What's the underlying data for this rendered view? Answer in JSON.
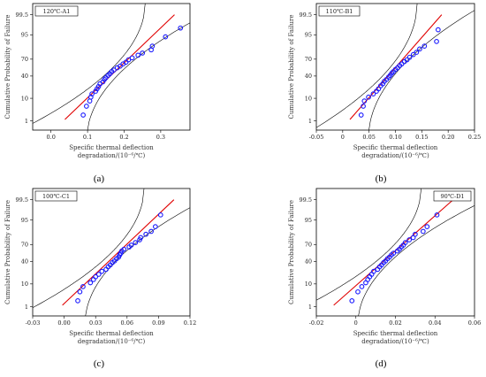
{
  "chart_data": [
    {
      "type": "scatter",
      "panel_label": "120℃-A1",
      "caption": "(a)",
      "xlabel": [
        "Specific thermal deflection",
        "degradation/(10⁻⁶/℃)"
      ],
      "ylabel": "Cumulative Probability of Failure",
      "x_ticks": [
        0.0,
        0.1,
        0.2,
        0.3
      ],
      "xlim": [
        -0.05,
        0.38
      ],
      "y_ticks": [
        1,
        10,
        40,
        70,
        95,
        99.5
      ],
      "y_tick_labels": [
        "1",
        "10",
        "40",
        "70",
        "95",
        "99.5"
      ],
      "fit": {
        "mean": 0.178,
        "sd": 0.062
      },
      "ci": {
        "x_low": [
          -0.02,
          0.34
        ],
        "x_mid": [
          0.14,
          0.23
        ]
      },
      "points": [
        [
          0.088,
          2.0
        ],
        [
          0.097,
          5.0
        ],
        [
          0.106,
          8.0
        ],
        [
          0.109,
          11.0
        ],
        [
          0.112,
          14.0
        ],
        [
          0.122,
          17.0
        ],
        [
          0.126,
          20.0
        ],
        [
          0.13,
          23.0
        ],
        [
          0.134,
          27.0
        ],
        [
          0.142,
          30.0
        ],
        [
          0.146,
          34.0
        ],
        [
          0.15,
          37.0
        ],
        [
          0.156,
          41.0
        ],
        [
          0.161,
          44.0
        ],
        [
          0.166,
          48.0
        ],
        [
          0.172,
          51.0
        ],
        [
          0.181,
          55.0
        ],
        [
          0.189,
          58.0
        ],
        [
          0.197,
          62.0
        ],
        [
          0.205,
          65.0
        ],
        [
          0.212,
          69.0
        ],
        [
          0.222,
          72.0
        ],
        [
          0.238,
          76.0
        ],
        [
          0.25,
          79.0
        ],
        [
          0.274,
          83.0
        ],
        [
          0.277,
          87.0
        ],
        [
          0.313,
          94.0
        ],
        [
          0.354,
          97.5
        ]
      ]
    },
    {
      "type": "scatter",
      "panel_label": "110℃-B1",
      "caption": "(b)",
      "xlabel": [
        "Specific thermal deflection",
        "degradation/(10⁻⁶/℃)"
      ],
      "ylabel": "Cumulative Probability of Failure",
      "x_ticks": [
        -0.05,
        0.0,
        0.05,
        0.1,
        0.15,
        0.2,
        0.25
      ],
      "x_tick_labels": [
        "-0.05",
        "0",
        "0.05",
        "0.10",
        "0.15",
        "0.20",
        "0.25"
      ],
      "xlim": [
        -0.05,
        0.25
      ],
      "y_ticks": [
        1,
        10,
        40,
        70,
        95,
        99.5
      ],
      "y_tick_labels": [
        "1",
        "10",
        "40",
        "70",
        "95",
        "99.5"
      ],
      "fit": {
        "mean": 0.095,
        "sd": 0.036
      },
      "ci": {
        "x_low": [
          -0.01,
          0.2
        ],
        "x_mid": [
          0.08,
          0.11
        ]
      },
      "points": [
        [
          0.035,
          2.0
        ],
        [
          0.039,
          5.0
        ],
        [
          0.041,
          8.0
        ],
        [
          0.049,
          11.0
        ],
        [
          0.058,
          14.0
        ],
        [
          0.064,
          17.0
        ],
        [
          0.068,
          20.0
        ],
        [
          0.072,
          24.0
        ],
        [
          0.076,
          27.0
        ],
        [
          0.079,
          31.0
        ],
        [
          0.083,
          34.0
        ],
        [
          0.087,
          38.0
        ],
        [
          0.09,
          41.0
        ],
        [
          0.093,
          45.0
        ],
        [
          0.096,
          48.0
        ],
        [
          0.1,
          52.0
        ],
        [
          0.104,
          55.0
        ],
        [
          0.108,
          59.0
        ],
        [
          0.112,
          62.0
        ],
        [
          0.117,
          66.0
        ],
        [
          0.122,
          69.0
        ],
        [
          0.127,
          73.0
        ],
        [
          0.134,
          77.0
        ],
        [
          0.14,
          80.0
        ],
        [
          0.146,
          84.0
        ],
        [
          0.155,
          87.0
        ],
        [
          0.178,
          91.0
        ],
        [
          0.181,
          97.0
        ]
      ]
    },
    {
      "type": "scatter",
      "panel_label": "100℃-C1",
      "caption": "(c)",
      "xlabel": [
        "Specific thermal deflection",
        "degradation/(10⁻⁶/℃)"
      ],
      "ylabel": "Cumulative Probability of Failure",
      "x_ticks": [
        -0.03,
        0.0,
        0.03,
        0.06,
        0.09,
        0.12
      ],
      "x_tick_labels": [
        "-0.03",
        "0.00",
        "0.03",
        "0.06",
        "0.09",
        "0.12"
      ],
      "xlim": [
        -0.03,
        0.12
      ],
      "y_ticks": [
        1,
        10,
        40,
        70,
        95,
        99.5
      ],
      "y_tick_labels": [
        "1",
        "10",
        "40",
        "70",
        "95",
        "99.5"
      ],
      "fit": {
        "mean": 0.048,
        "sd": 0.022
      },
      "ci": {
        "x_low": [
          -0.01,
          0.11
        ],
        "x_mid": [
          0.045,
          0.052
        ]
      },
      "points": [
        [
          0.013,
          2.0
        ],
        [
          0.015,
          5.0
        ],
        [
          0.018,
          8.0
        ],
        [
          0.025,
          11.0
        ],
        [
          0.028,
          14.0
        ],
        [
          0.03,
          17.0
        ],
        [
          0.033,
          20.0
        ],
        [
          0.036,
          24.0
        ],
        [
          0.04,
          27.0
        ],
        [
          0.042,
          31.0
        ],
        [
          0.044,
          34.0
        ],
        [
          0.046,
          38.0
        ],
        [
          0.048,
          41.0
        ],
        [
          0.05,
          45.0
        ],
        [
          0.052,
          48.0
        ],
        [
          0.053,
          52.0
        ],
        [
          0.054,
          55.0
        ],
        [
          0.055,
          59.0
        ],
        [
          0.057,
          62.0
        ],
        [
          0.062,
          66.0
        ],
        [
          0.064,
          69.0
        ],
        [
          0.068,
          73.0
        ],
        [
          0.072,
          77.0
        ],
        [
          0.073,
          80.0
        ],
        [
          0.078,
          84.0
        ],
        [
          0.083,
          87.0
        ],
        [
          0.087,
          91.0
        ],
        [
          0.092,
          97.0
        ]
      ]
    },
    {
      "type": "scatter",
      "panel_label": "90℃-D1",
      "caption": "(d)",
      "xlabel": [
        "Specific thermal deflection",
        "degradation/(10⁻⁶/℃)"
      ],
      "ylabel": "Cumulative Probability of Failure",
      "x_ticks": [
        -0.02,
        0.0,
        0.02,
        0.04,
        0.06
      ],
      "x_tick_labels": [
        "-0.02",
        "0",
        "0.02",
        "0.04",
        "0.06"
      ],
      "xlim": [
        -0.02,
        0.06
      ],
      "y_ticks": [
        1,
        10,
        40,
        70,
        95,
        99.5
      ],
      "y_tick_labels": [
        "1",
        "10",
        "40",
        "70",
        "95",
        "99.5"
      ],
      "fit": {
        "mean": 0.017,
        "sd": 0.0125
      },
      "ci": {
        "x_low": [
          -0.01,
          0.05
        ],
        "x_mid": [
          0.014,
          0.021
        ]
      },
      "points": [
        [
          -0.002,
          2.0
        ],
        [
          0.001,
          5.0
        ],
        [
          0.003,
          8.0
        ],
        [
          0.005,
          11.0
        ],
        [
          0.006,
          14.0
        ],
        [
          0.007,
          17.0
        ],
        [
          0.008,
          20.0
        ],
        [
          0.009,
          24.0
        ],
        [
          0.011,
          27.0
        ],
        [
          0.012,
          31.0
        ],
        [
          0.013,
          34.0
        ],
        [
          0.014,
          38.0
        ],
        [
          0.015,
          41.0
        ],
        [
          0.016,
          45.0
        ],
        [
          0.017,
          48.0
        ],
        [
          0.018,
          52.0
        ],
        [
          0.019,
          55.0
        ],
        [
          0.021,
          59.0
        ],
        [
          0.022,
          62.0
        ],
        [
          0.023,
          66.0
        ],
        [
          0.024,
          69.0
        ],
        [
          0.025,
          73.0
        ],
        [
          0.027,
          77.0
        ],
        [
          0.029,
          80.0
        ],
        [
          0.03,
          84.0
        ],
        [
          0.034,
          87.0
        ],
        [
          0.036,
          91.0
        ],
        [
          0.041,
          97.0
        ]
      ]
    }
  ]
}
